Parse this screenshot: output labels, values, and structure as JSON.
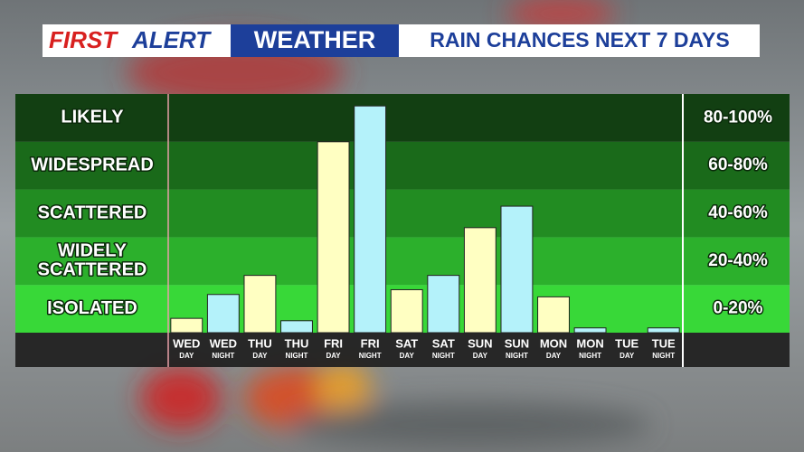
{
  "header": {
    "brand_first": "FIRST",
    "brand_second": "ALERT",
    "program": "WEATHER"
  },
  "chart_data": {
    "type": "bar",
    "title": "RAIN CHANCES NEXT 7 DAYS",
    "categories": [
      "WED",
      "WED",
      "THU",
      "THU",
      "FRI",
      "FRI",
      "SAT",
      "SAT",
      "SUN",
      "SUN",
      "MON",
      "MON",
      "TUE",
      "TUE"
    ],
    "category_sublabels": [
      "DAY",
      "NIGHT",
      "DAY",
      "NIGHT",
      "DAY",
      "NIGHT",
      "DAY",
      "NIGHT",
      "DAY",
      "NIGHT",
      "DAY",
      "NIGHT",
      "DAY",
      "NIGHT"
    ],
    "values": [
      6,
      16,
      24,
      5,
      80,
      95,
      18,
      24,
      44,
      53,
      15,
      2,
      0,
      2
    ],
    "colors": [
      "#ffffc2",
      "#b4f2fa",
      "#ffffc2",
      "#b4f2fa",
      "#ffffc2",
      "#b4f2fa",
      "#ffffc2",
      "#b4f2fa",
      "#ffffc2",
      "#b4f2fa",
      "#ffffc2",
      "#b4f2fa",
      "#ffffc2",
      "#b4f2fa"
    ],
    "ylim": [
      0,
      100
    ],
    "bands": [
      {
        "label": [
          "LIKELY"
        ],
        "range": "80-100%",
        "from": 80,
        "to": 100,
        "color": "#123f12"
      },
      {
        "label": [
          "WIDESPREAD"
        ],
        "range": "60-80%",
        "from": 60,
        "to": 80,
        "color": "#1a6a1a"
      },
      {
        "label": [
          "SCATTERED"
        ],
        "range": "40-60%",
        "from": 40,
        "to": 60,
        "color": "#228c22"
      },
      {
        "label": [
          "WIDELY",
          "SCATTERED"
        ],
        "range": "20-40%",
        "from": 20,
        "to": 40,
        "color": "#2cb02c"
      },
      {
        "label": [
          "ISOLATED"
        ],
        "range": "0-20%",
        "from": 0,
        "to": 20,
        "color": "#38d838"
      }
    ]
  }
}
